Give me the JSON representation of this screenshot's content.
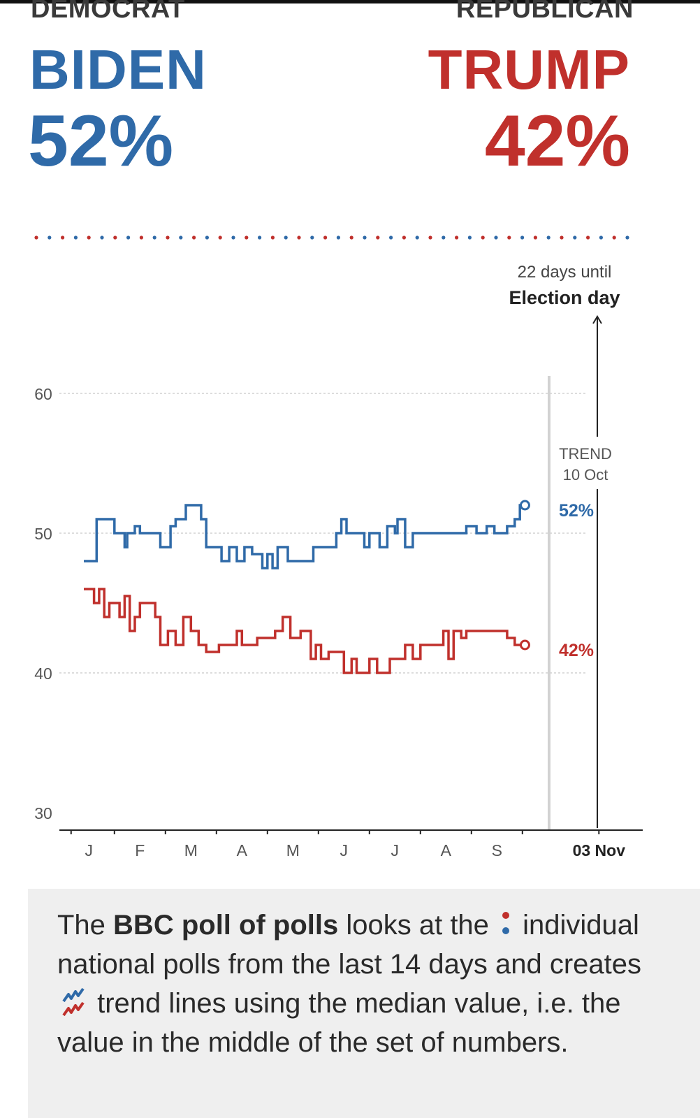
{
  "header": {
    "dem_party": "DEMOCRAT",
    "dem_name": "BIDEN",
    "dem_pct": "52%",
    "rep_party": "REPUBLICAN",
    "rep_name": "TRUMP",
    "rep_pct": "42%"
  },
  "colors": {
    "democrat": "#2f6aa8",
    "republican": "#c0302c",
    "grid": "#bbbbbb",
    "trend_line": "#cfcfcf"
  },
  "chart_data": {
    "type": "line",
    "title": "",
    "xlabel": "",
    "ylabel": "",
    "ylim": [
      30,
      60
    ],
    "yticks": [
      60,
      50,
      40,
      30
    ],
    "xticks": [
      "J",
      "F",
      "M",
      "A",
      "M",
      "J",
      "J",
      "A",
      "S",
      "03 Nov"
    ],
    "grid": "horizontal dotted at 60, 50, 40",
    "election_note": {
      "line1": "22 days until",
      "line2": "Election day"
    },
    "trend_note": {
      "line1": "TREND",
      "line2": "10 Oct"
    },
    "end_labels": {
      "democrat": "52%",
      "republican": "42%"
    },
    "x_unit": "month (Jan = 0, Nov 3 = 10.1)",
    "series": [
      {
        "name": "BIDEN",
        "color": "#2f6aa8",
        "points": [
          [
            0.0,
            48
          ],
          [
            0.25,
            48
          ],
          [
            0.25,
            51
          ],
          [
            0.6,
            51
          ],
          [
            0.6,
            50
          ],
          [
            0.8,
            50
          ],
          [
            0.8,
            49
          ],
          [
            0.85,
            49
          ],
          [
            0.85,
            50
          ],
          [
            1.0,
            50
          ],
          [
            1.0,
            50.5
          ],
          [
            1.1,
            50.5
          ],
          [
            1.1,
            50
          ],
          [
            1.5,
            50
          ],
          [
            1.5,
            49
          ],
          [
            1.7,
            49
          ],
          [
            1.7,
            50.5
          ],
          [
            1.8,
            50.5
          ],
          [
            1.8,
            51
          ],
          [
            2.0,
            51
          ],
          [
            2.0,
            52
          ],
          [
            2.3,
            52
          ],
          [
            2.3,
            51
          ],
          [
            2.4,
            51
          ],
          [
            2.4,
            49
          ],
          [
            2.7,
            49
          ],
          [
            2.7,
            48
          ],
          [
            2.85,
            48
          ],
          [
            2.85,
            49
          ],
          [
            3.0,
            49
          ],
          [
            3.0,
            48
          ],
          [
            3.15,
            48
          ],
          [
            3.15,
            49
          ],
          [
            3.3,
            49
          ],
          [
            3.3,
            48.5
          ],
          [
            3.5,
            48.5
          ],
          [
            3.5,
            47.5
          ],
          [
            3.6,
            47.5
          ],
          [
            3.6,
            48.5
          ],
          [
            3.7,
            48.5
          ],
          [
            3.7,
            47.5
          ],
          [
            3.8,
            47.5
          ],
          [
            3.8,
            49
          ],
          [
            4.0,
            49
          ],
          [
            4.0,
            48
          ],
          [
            4.5,
            48
          ],
          [
            4.5,
            49
          ],
          [
            4.95,
            49
          ],
          [
            4.95,
            50
          ],
          [
            5.05,
            50
          ],
          [
            5.05,
            51
          ],
          [
            5.15,
            51
          ],
          [
            5.15,
            50
          ],
          [
            5.5,
            50
          ],
          [
            5.5,
            49
          ],
          [
            5.6,
            49
          ],
          [
            5.6,
            50
          ],
          [
            5.8,
            50
          ],
          [
            5.8,
            49
          ],
          [
            5.95,
            49
          ],
          [
            5.95,
            50.5
          ],
          [
            6.1,
            50.5
          ],
          [
            6.1,
            50
          ],
          [
            6.15,
            50
          ],
          [
            6.15,
            51
          ],
          [
            6.3,
            51
          ],
          [
            6.3,
            49
          ],
          [
            6.45,
            49
          ],
          [
            6.45,
            50
          ],
          [
            7.0,
            50
          ],
          [
            7.0,
            50
          ],
          [
            7.5,
            50
          ],
          [
            7.5,
            50.5
          ],
          [
            7.7,
            50.5
          ],
          [
            7.7,
            50
          ],
          [
            7.9,
            50
          ],
          [
            7.9,
            50.5
          ],
          [
            8.05,
            50.5
          ],
          [
            8.05,
            50
          ],
          [
            8.3,
            50
          ],
          [
            8.3,
            50.5
          ],
          [
            8.45,
            50.5
          ],
          [
            8.45,
            51
          ],
          [
            8.55,
            51
          ],
          [
            8.55,
            52
          ],
          [
            8.65,
            52
          ]
        ]
      },
      {
        "name": "TRUMP",
        "color": "#c0302c",
        "points": [
          [
            0.0,
            46
          ],
          [
            0.2,
            46
          ],
          [
            0.2,
            45
          ],
          [
            0.3,
            45
          ],
          [
            0.3,
            46
          ],
          [
            0.4,
            46
          ],
          [
            0.4,
            44
          ],
          [
            0.5,
            44
          ],
          [
            0.5,
            45
          ],
          [
            0.7,
            45
          ],
          [
            0.7,
            44
          ],
          [
            0.8,
            44
          ],
          [
            0.8,
            45.5
          ],
          [
            0.9,
            45.5
          ],
          [
            0.9,
            43
          ],
          [
            1.0,
            43
          ],
          [
            1.0,
            44
          ],
          [
            1.1,
            44
          ],
          [
            1.1,
            45
          ],
          [
            1.4,
            45
          ],
          [
            1.4,
            44
          ],
          [
            1.5,
            44
          ],
          [
            1.5,
            42
          ],
          [
            1.65,
            42
          ],
          [
            1.65,
            43
          ],
          [
            1.8,
            43
          ],
          [
            1.8,
            42
          ],
          [
            1.95,
            42
          ],
          [
            1.95,
            44
          ],
          [
            2.1,
            44
          ],
          [
            2.1,
            43
          ],
          [
            2.25,
            43
          ],
          [
            2.25,
            42
          ],
          [
            2.4,
            42
          ],
          [
            2.4,
            41.5
          ],
          [
            2.65,
            41.5
          ],
          [
            2.65,
            42
          ],
          [
            3.0,
            42
          ],
          [
            3.0,
            43
          ],
          [
            3.1,
            43
          ],
          [
            3.1,
            42
          ],
          [
            3.4,
            42
          ],
          [
            3.4,
            42.5
          ],
          [
            3.75,
            42.5
          ],
          [
            3.75,
            43
          ],
          [
            3.9,
            43
          ],
          [
            3.9,
            44
          ],
          [
            4.05,
            44
          ],
          [
            4.05,
            42.5
          ],
          [
            4.25,
            42.5
          ],
          [
            4.25,
            43
          ],
          [
            4.45,
            43
          ],
          [
            4.45,
            41
          ],
          [
            4.55,
            41
          ],
          [
            4.55,
            42
          ],
          [
            4.65,
            42
          ],
          [
            4.65,
            41
          ],
          [
            4.8,
            41
          ],
          [
            4.8,
            41.5
          ],
          [
            5.1,
            41.5
          ],
          [
            5.1,
            40
          ],
          [
            5.25,
            40
          ],
          [
            5.25,
            41
          ],
          [
            5.35,
            41
          ],
          [
            5.35,
            40
          ],
          [
            5.6,
            40
          ],
          [
            5.6,
            41
          ],
          [
            5.75,
            41
          ],
          [
            5.75,
            40
          ],
          [
            6.0,
            40
          ],
          [
            6.0,
            41
          ],
          [
            6.3,
            41
          ],
          [
            6.3,
            42
          ],
          [
            6.45,
            42
          ],
          [
            6.45,
            41
          ],
          [
            6.6,
            41
          ],
          [
            6.6,
            42
          ],
          [
            7.05,
            42
          ],
          [
            7.05,
            43
          ],
          [
            7.15,
            43
          ],
          [
            7.15,
            41
          ],
          [
            7.25,
            41
          ],
          [
            7.25,
            43
          ],
          [
            7.4,
            43
          ],
          [
            7.4,
            42.5
          ],
          [
            7.5,
            42.5
          ],
          [
            7.5,
            43
          ],
          [
            8.3,
            43
          ],
          [
            8.3,
            42.5
          ],
          [
            8.45,
            42.5
          ],
          [
            8.45,
            42
          ],
          [
            8.65,
            42
          ]
        ]
      }
    ]
  },
  "footer": {
    "text_a": "The ",
    "text_bold": "BBC poll of polls",
    "text_b": " looks at the ",
    "text_c": " individual national polls from the last 14 days and creates ",
    "text_d": " trend lines using the median value, i.e. the value in the middle of the set of numbers."
  }
}
